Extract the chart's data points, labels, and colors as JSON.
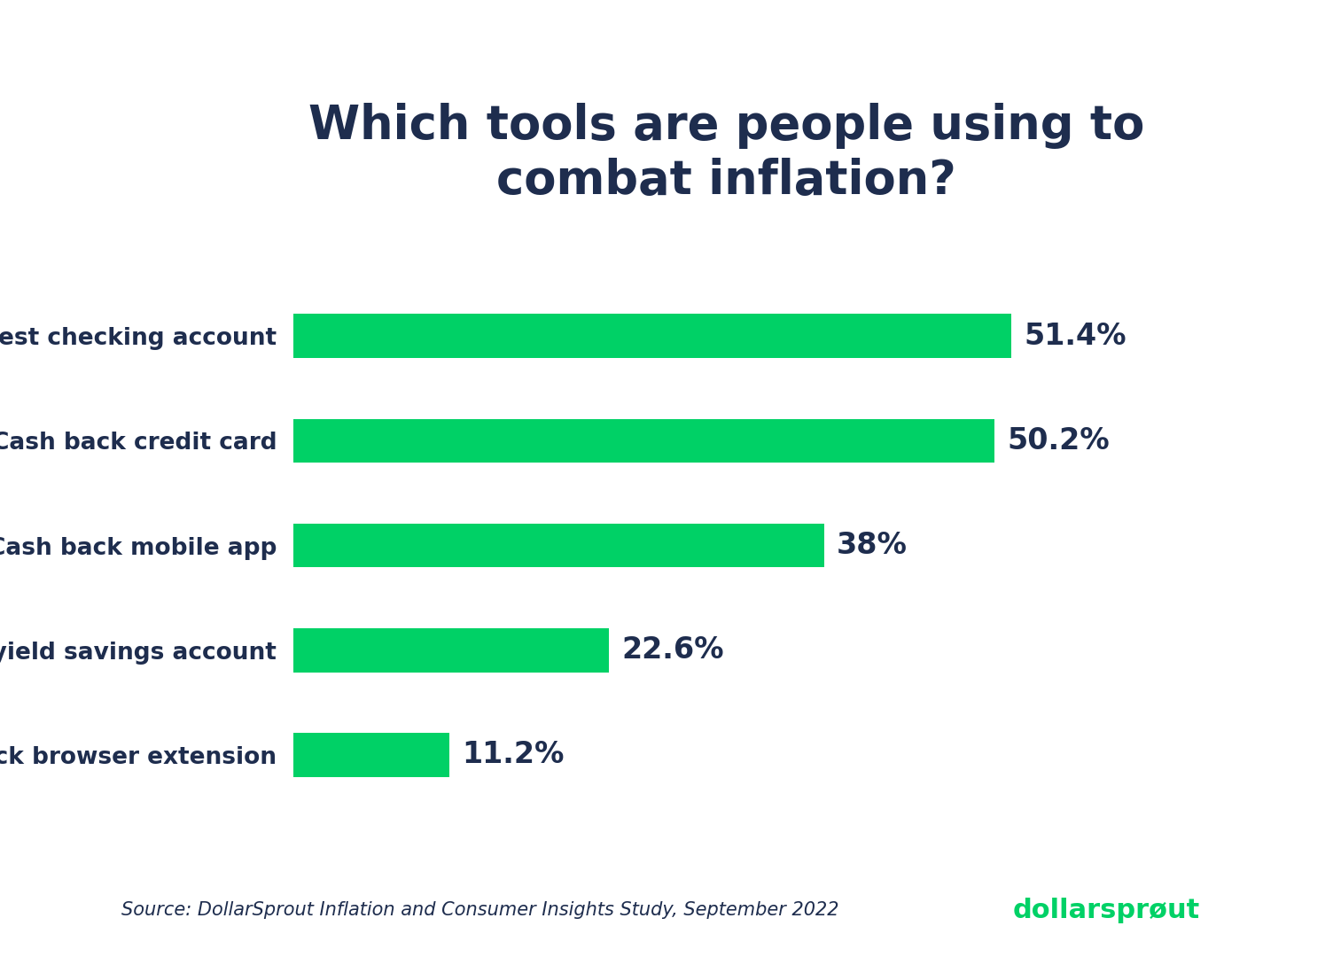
{
  "title": "Which tools are people using to\ncombat inflation?",
  "categories": [
    "Cash back browser extension",
    "High-yield savings account",
    "Cash back mobile app",
    "Cash back credit card",
    "Interest checking account"
  ],
  "values": [
    11.2,
    22.6,
    38.0,
    50.2,
    51.4
  ],
  "labels": [
    "11.2%",
    "22.6%",
    "38%",
    "50.2%",
    "51.4%"
  ],
  "bar_color": "#00D166",
  "title_color": "#1E2D4E",
  "label_color": "#1E2D4E",
  "ytick_color": "#1E2D4E",
  "grid_color": "#D0D0D0",
  "background_color": "#FFFFFF",
  "source_text": "Source: DollarSprout Inflation and Consumer Insights Study, September 2022",
  "xlim": [
    0,
    62
  ],
  "title_fontsize": 38,
  "label_fontsize": 24,
  "ytick_fontsize": 19,
  "source_fontsize": 15
}
